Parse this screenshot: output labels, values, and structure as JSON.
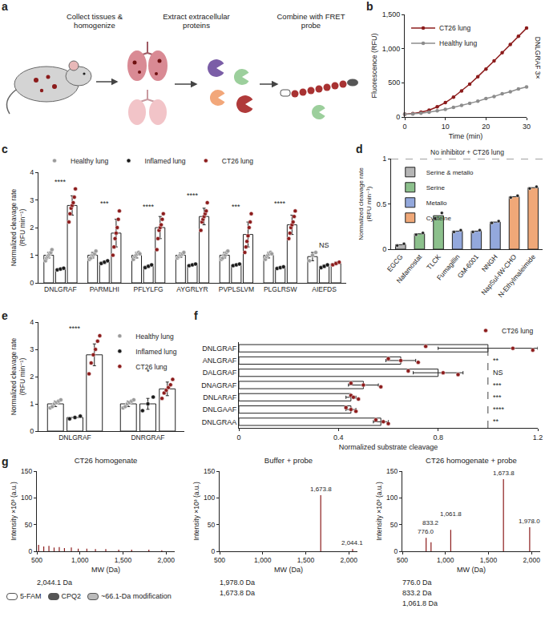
{
  "chart_data": [
    {
      "panel": "a",
      "type": "diagram",
      "steps": [
        "Collect tissues & homogenize",
        "Extract extracellular proteins",
        "Combine with FRET probe"
      ]
    },
    {
      "panel": "b",
      "type": "line",
      "xlabel": "Time (min)",
      "ylabel": "Fluorescence (RFU)",
      "x": [
        0,
        2,
        4,
        6,
        8,
        10,
        12,
        14,
        16,
        18,
        20,
        22,
        24,
        26,
        28,
        30
      ],
      "series": [
        {
          "name": "CT26 lung",
          "color": "#8c1c1c",
          "values": [
            40,
            50,
            70,
            100,
            150,
            210,
            290,
            380,
            480,
            590,
            700,
            820,
            940,
            1060,
            1180,
            1300
          ]
        },
        {
          "name": "Healthy lung",
          "color": "#8c8c8c",
          "values": [
            40,
            45,
            55,
            70,
            90,
            110,
            140,
            170,
            200,
            230,
            270,
            300,
            340,
            370,
            410,
            440
          ]
        }
      ],
      "xlim": [
        0,
        30
      ],
      "xticks": [
        0,
        10,
        20,
        30
      ],
      "ylim": [
        0,
        1500
      ],
      "yticks": [
        0,
        500,
        {
          "value": 1000,
          "label": "1,000"
        },
        {
          "value": 1500,
          "label": "1,500"
        }
      ],
      "annotation": "DNLGRAF 3×",
      "legend": "top left",
      "marker": "circle",
      "grid": false
    },
    {
      "panel": "c",
      "type": "bar",
      "ylabel": "Normalized cleavage rate (RFU min⁻¹)",
      "categories": [
        "DNLGRAF",
        "PARMLHI",
        "PFLYLFG",
        "AYGRLYR",
        "PVPLSLVM",
        "PLGLRSW",
        "AIEFDS"
      ],
      "series": [
        {
          "name": "Healthy lung",
          "color": "#9a9a9a",
          "values": [
            1,
            1,
            1,
            1,
            1,
            1,
            0.95
          ],
          "errors": [
            0.1,
            0.1,
            0.1,
            0.08,
            0.1,
            0.1,
            0.15
          ],
          "points": [
            [
              0.8,
              0.9,
              0.95,
              1.0,
              1.05,
              1.1,
              1.2
            ],
            [
              0.85,
              0.9,
              1.0,
              1.0,
              1.05,
              1.15
            ],
            [
              0.85,
              0.95,
              1.0,
              1.05,
              1.1,
              1.05
            ],
            [
              0.9,
              0.95,
              1.0,
              1.0,
              1.05,
              1.1
            ],
            [
              0.85,
              0.9,
              1.0,
              1.0,
              1.1,
              1.15
            ],
            [
              0.85,
              0.95,
              1.0,
              1.05,
              1.1,
              1.05
            ],
            [
              0.8,
              1.0,
              1.1
            ]
          ]
        },
        {
          "name": "Inflamed lung",
          "color": "#1a1a1a",
          "values": [
            0.5,
            0.75,
            0.6,
            0.65,
            0.65,
            0.55,
            0.6
          ],
          "errors": [
            0.03,
            0.05,
            0.05,
            0.03,
            0.03,
            0.03,
            0.05
          ],
          "points": [
            [
              0.47,
              0.5,
              0.53
            ],
            [
              0.7,
              0.75,
              0.8
            ],
            [
              0.55,
              0.6,
              0.65
            ],
            [
              0.62,
              0.65,
              0.68
            ],
            [
              0.62,
              0.65,
              0.68
            ],
            [
              0.52,
              0.55,
              0.58
            ],
            [
              0.55,
              0.6,
              0.65
            ]
          ]
        },
        {
          "name": "CT26 lung",
          "color": "#8c1c1c",
          "values": [
            2.8,
            1.8,
            2.0,
            2.4,
            1.75,
            2.1,
            0.7
          ],
          "errors": [
            0.35,
            0.5,
            0.4,
            0.3,
            0.45,
            0.35,
            0.05
          ],
          "points": [
            [
              2.2,
              2.5,
              2.7,
              2.8,
              2.9,
              3.1,
              3.4
            ],
            [
              1.0,
              1.3,
              1.6,
              1.8,
              2.0,
              2.3,
              2.6
            ],
            [
              1.2,
              1.6,
              1.9,
              2.0,
              2.1,
              2.3,
              2.5
            ],
            [
              1.9,
              2.2,
              2.3,
              2.4,
              2.5,
              2.6,
              2.9
            ],
            [
              1.1,
              1.3,
              1.5,
              1.7,
              2.0,
              2.2,
              2.5
            ],
            [
              1.6,
              1.8,
              2.0,
              2.1,
              2.2,
              2.4,
              2.6
            ],
            [
              0.65,
              0.7,
              0.75
            ]
          ]
        }
      ],
      "significance": [
        "****",
        "***",
        "****",
        "****",
        "***",
        "****",
        "NS"
      ],
      "ylim": [
        0,
        4
      ],
      "yticks": [
        0,
        1,
        2,
        3,
        4
      ],
      "legend": "top",
      "marker": "circle",
      "grid": false
    },
    {
      "panel": "d",
      "type": "bar",
      "ylabel": "Normalized cleavage rate (RFU min⁻¹)",
      "categories": [
        "EGCG",
        "Nafamostat",
        "TLCK",
        "Fumagillin",
        "GM-6001",
        "NNGH",
        "NapSul-IW-CHO",
        "N-Ethylmaleimide"
      ],
      "series": [
        {
          "name": "Serine & metallo",
          "color": "#b5b5b5",
          "values": [
            0.05,
            null,
            null,
            null,
            null,
            null,
            null,
            null
          ],
          "points": [
            [
              0.04,
              0.06
            ],
            null,
            null,
            null,
            null,
            null,
            null,
            null
          ]
        },
        {
          "name": "Serine",
          "color": "#8cc08c",
          "values": [
            null,
            0.17,
            0.37,
            null,
            null,
            null,
            null,
            null
          ],
          "points": [
            null,
            [
              0.16,
              0.18
            ],
            [
              0.34,
              0.4
            ],
            null,
            null,
            null,
            null,
            null
          ]
        },
        {
          "name": "Metallo",
          "color": "#93a8dc",
          "values": [
            null,
            null,
            null,
            0.2,
            0.2,
            0.3,
            null,
            null
          ],
          "points": [
            null,
            null,
            null,
            [
              0.19,
              0.21
            ],
            [
              0.19,
              0.21
            ],
            [
              0.29,
              0.31
            ],
            null,
            null
          ]
        },
        {
          "name": "Cysteine",
          "color": "#f0a878",
          "values": [
            null,
            null,
            null,
            null,
            null,
            null,
            0.58,
            0.68
          ],
          "points": [
            null,
            null,
            null,
            null,
            null,
            null,
            [
              0.57,
              0.59
            ],
            [
              0.67,
              0.69
            ]
          ]
        }
      ],
      "reference": 1,
      "reference_label": "No inhibitor + CT26 lung",
      "ylim": [
        0,
        1
      ],
      "yticks": [
        0,
        0.5,
        1
      ],
      "legend": "top left",
      "marker": "circle",
      "grid": false
    },
    {
      "panel": "e",
      "type": "bar",
      "ylabel": "Normalized cleavage rate (RFU min⁻¹)",
      "categories": [
        "DNLGRAF",
        "DNRGRAF"
      ],
      "series": [
        {
          "name": "Healthy lung",
          "color": "#9a9a9a",
          "values": [
            1,
            1
          ],
          "errors": [
            0.1,
            0.1
          ],
          "points": [
            [
              0.85,
              0.9,
              1.0,
              1.05,
              1.1,
              1.15
            ],
            [
              0.85,
              0.9,
              1.0,
              1.05,
              1.1,
              1.15
            ]
          ]
        },
        {
          "name": "Inflamed lung",
          "color": "#1a1a1a",
          "values": [
            0.5,
            1.0
          ],
          "errors": [
            0.03,
            0.2
          ],
          "points": [
            [
              0.45,
              0.5,
              0.55
            ],
            [
              0.75,
              1.0,
              1.25
            ]
          ]
        },
        {
          "name": "CT26 lung",
          "color": "#8c1c1c",
          "values": [
            2.8,
            1.55
          ],
          "errors": [
            0.4,
            0.25
          ],
          "points": [
            [
              2.1,
              2.5,
              2.8,
              3.0,
              3.3,
              3.5
            ],
            [
              1.2,
              1.4,
              1.5,
              1.6,
              1.7,
              1.9
            ]
          ]
        }
      ],
      "significance": [
        "****",
        "*"
      ],
      "ylim": [
        0,
        4
      ],
      "yticks": [
        0,
        1,
        2,
        3,
        4
      ],
      "legend": "top right",
      "marker": "circle",
      "grid": false
    },
    {
      "panel": "f",
      "type": "bar",
      "orientation": "horizontal",
      "xlabel": "Normalized substrate cleavage",
      "categories": [
        "DNLGRAF",
        "ANLGRAF",
        "DALGRAF",
        "DNAGRAF",
        "DNLARAF",
        "DNLGAAF",
        "DNLGRAA"
      ],
      "series": [
        {
          "name": "CT26 lung",
          "color": "#8c1c1c",
          "values": [
            1.0,
            0.65,
            0.8,
            0.5,
            0.45,
            0.45,
            0.57
          ],
          "errors": [
            0.2,
            0.06,
            0.1,
            0.06,
            0.02,
            0.02,
            0.03
          ],
          "points": [
            [
              0.75,
              1.1,
              1.18
            ],
            [
              0.6,
              0.65,
              0.72
            ],
            [
              0.68,
              0.82,
              0.88
            ],
            [
              0.45,
              0.5,
              0.57
            ],
            [
              0.45,
              0.46,
              0.48
            ],
            [
              0.43,
              0.45,
              0.47
            ],
            [
              0.55,
              0.58,
              0.6
            ]
          ]
        }
      ],
      "significance": [
        null,
        "**",
        "NS",
        "***",
        "***",
        "****",
        "**"
      ],
      "reference": 1,
      "xlim": [
        0,
        1.2
      ],
      "xticks": [
        0,
        0.4,
        0.8,
        1.2
      ],
      "legend": "top",
      "marker": "circle",
      "grid": false
    },
    {
      "panel": "g",
      "type": "stem",
      "title": "CT26 homogenate",
      "xlabel": "MW (Da)",
      "ylabel": "Intensity ×10³ (a.u.)",
      "color": "#8c1c1c",
      "x": [
        520,
        580,
        640,
        700,
        760,
        820,
        900,
        980,
        1080,
        1180,
        1300,
        1450,
        1600,
        1800,
        1950
      ],
      "values": [
        12,
        9,
        10,
        7,
        8,
        6,
        7,
        5,
        5,
        4,
        4,
        3,
        3,
        3,
        2
      ],
      "peak_labels": [
        null,
        null,
        null,
        null,
        null,
        null,
        null,
        null,
        null,
        null,
        null,
        null,
        null,
        null,
        null
      ],
      "xlim": [
        500,
        2100
      ],
      "xticks": [
        500,
        {
          "value": 1000,
          "label": "1,000"
        },
        {
          "value": 1500,
          "label": "1,500"
        },
        {
          "value": 2000,
          "label": "2,000"
        }
      ],
      "ylim": [
        0,
        150
      ],
      "yticks": [
        0,
        50,
        100,
        150
      ],
      "grid": false,
      "captions": [
        "2,044.1 Da"
      ],
      "key": [
        {
          "name": "5-FAM",
          "color": "#ffffff"
        },
        {
          "name": "CPQ2",
          "color": "#555555"
        },
        {
          "name": "~66.1-Da modification",
          "color": "#bbbbbb"
        }
      ]
    },
    {
      "type": "stem",
      "title": "Buffer + probe",
      "xlabel": "MW (Da)",
      "ylabel": "Intensity ×10³ (a.u.)",
      "color": "#8c1c1c",
      "x": [
        1673.8,
        2044.1
      ],
      "values": [
        105,
        4
      ],
      "peak_labels": [
        "1,673.8",
        "2,044.1"
      ],
      "xlim": [
        500,
        2100
      ],
      "xticks": [
        500,
        {
          "value": 1000,
          "label": "1,000"
        },
        {
          "value": 1500,
          "label": "1,500"
        },
        {
          "value": 2000,
          "label": "2,000"
        }
      ],
      "ylim": [
        0,
        150
      ],
      "yticks": [
        0,
        50,
        100,
        150
      ],
      "grid": false,
      "captions": [
        "1,978.0 Da",
        "1,673.8 Da"
      ]
    },
    {
      "type": "stem",
      "title": "CT26 homogenate + probe",
      "xlabel": "MW (Da)",
      "ylabel": "Intensity ×10³ (a.u.)",
      "color": "#8c1c1c",
      "x": [
        776.0,
        833.2,
        1061.8,
        1673.8,
        1978.0
      ],
      "values": [
        25,
        17,
        40,
        135,
        45
      ],
      "peak_labels": [
        "776.0",
        "833.2",
        "1,061.8",
        "1,673.8",
        "1,978.0"
      ],
      "xlim": [
        500,
        2100
      ],
      "xticks": [
        500,
        {
          "value": 1000,
          "label": "1,000"
        },
        {
          "value": 1500,
          "label": "1,500"
        },
        {
          "value": 2000,
          "label": "2,000"
        }
      ],
      "ylim": [
        0,
        150
      ],
      "yticks": [
        0,
        50,
        100,
        150
      ],
      "grid": false,
      "captions": [
        "776.0 Da",
        "833.2 Da",
        "1,061.8 Da"
      ]
    }
  ]
}
